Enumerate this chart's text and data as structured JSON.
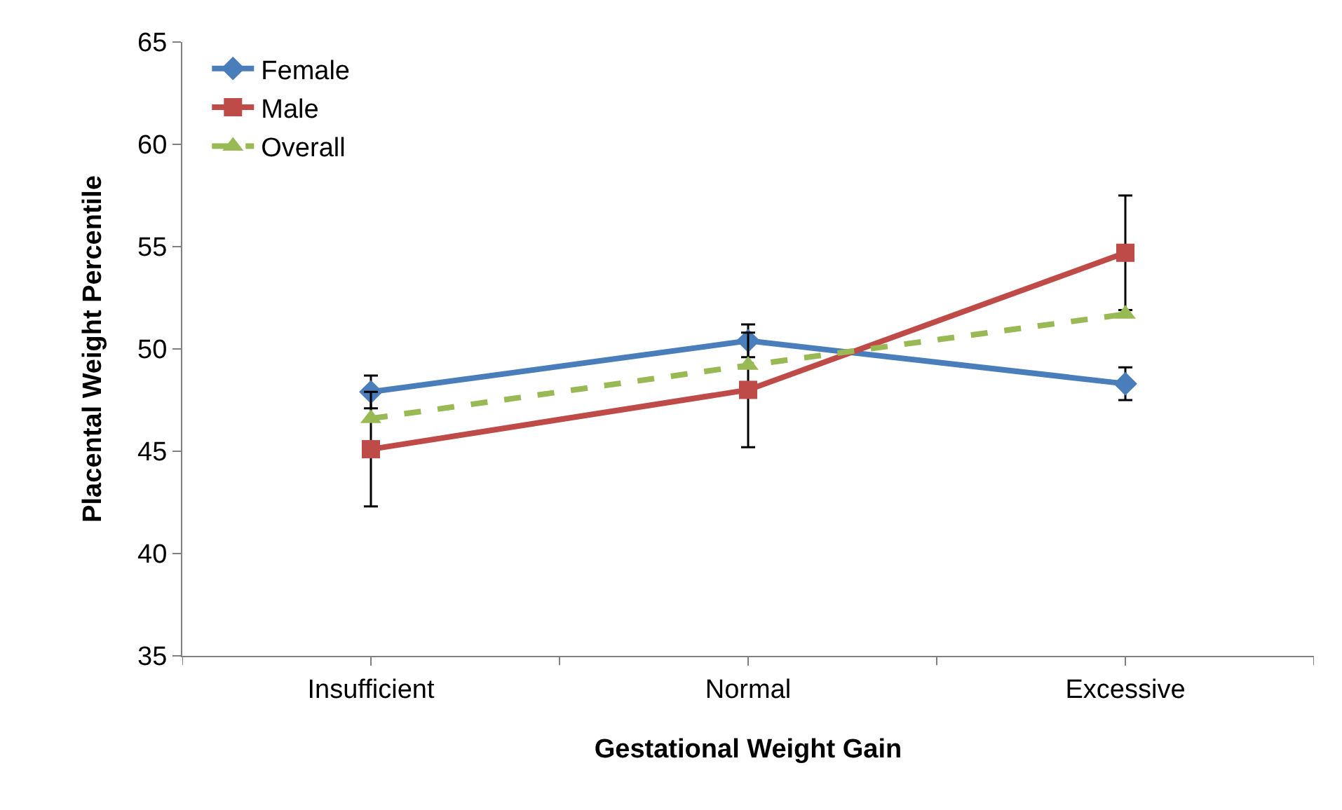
{
  "chart_data": {
    "type": "line",
    "xlabel": "Gestational Weight Gain",
    "ylabel": "Placental Weight Percentile",
    "categories": [
      "Insufficient",
      "Normal",
      "Excessive"
    ],
    "series": [
      {
        "name": "Female",
        "color": "#4a7ebb",
        "values": [
          47.9,
          50.4,
          48.3
        ],
        "errors": [
          0.8,
          0.8,
          0.8
        ],
        "marker": "diamond",
        "line_style": "solid"
      },
      {
        "name": "Male",
        "color": "#be4b48",
        "values": [
          45.1,
          48.0,
          54.7
        ],
        "errors": [
          2.8,
          2.8,
          2.8
        ],
        "marker": "square",
        "line_style": "solid"
      },
      {
        "name": "Overall",
        "color": "#98b954",
        "values": [
          46.6,
          49.2,
          51.7
        ],
        "marker": "triangle",
        "line_style": "dashed"
      }
    ],
    "ylim": [
      35,
      65
    ],
    "yticks": [
      35,
      40,
      45,
      50,
      55,
      60,
      65
    ],
    "legend": "top left"
  }
}
